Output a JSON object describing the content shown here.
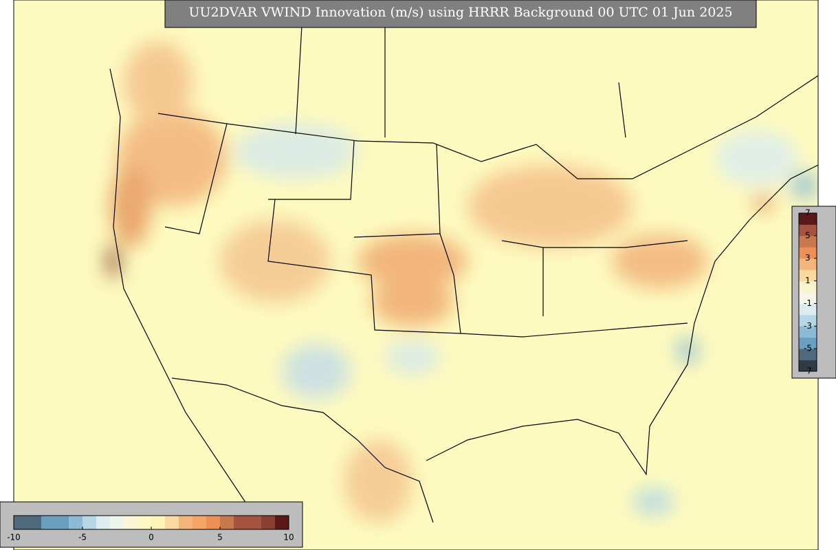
{
  "title": "UU2DVAR VWIND Innovation (m/s) using HRRR Background 00 UTC 01 Jun 2025",
  "colorbars": [
    {
      "orientation": "vertical",
      "range": [
        -7,
        7
      ],
      "ticks": [
        7,
        5,
        3,
        1,
        -1,
        -3,
        -5,
        -7
      ],
      "colors": [
        "#2f3b44",
        "#4f6a7c",
        "#6a9fc0",
        "#8dbbd6",
        "#b5d7e6",
        "#dcecef",
        "#f4f6e8",
        "#fbf3cf",
        "#f8d9a0",
        "#f4b57a",
        "#ec9055",
        "#c9784e",
        "#a65440",
        "#5a1818"
      ]
    },
    {
      "orientation": "horizontal",
      "range": [
        -10,
        10
      ],
      "ticks": [
        -10,
        -5,
        0,
        5,
        10
      ],
      "colors": [
        "#4f6a7c",
        "#4f6a7c",
        "#6a9fc0",
        "#6a9fc0",
        "#8dbbd6",
        "#b5d7e6",
        "#dcecef",
        "#eef5ec",
        "#fbf6d6",
        "#fdf8c4",
        "#fdf3b8",
        "#f8d9a0",
        "#f4b57a",
        "#f4a567",
        "#ec9055",
        "#c9784e",
        "#a65440",
        "#a65440",
        "#8a3f33",
        "#5a1818"
      ]
    }
  ]
}
